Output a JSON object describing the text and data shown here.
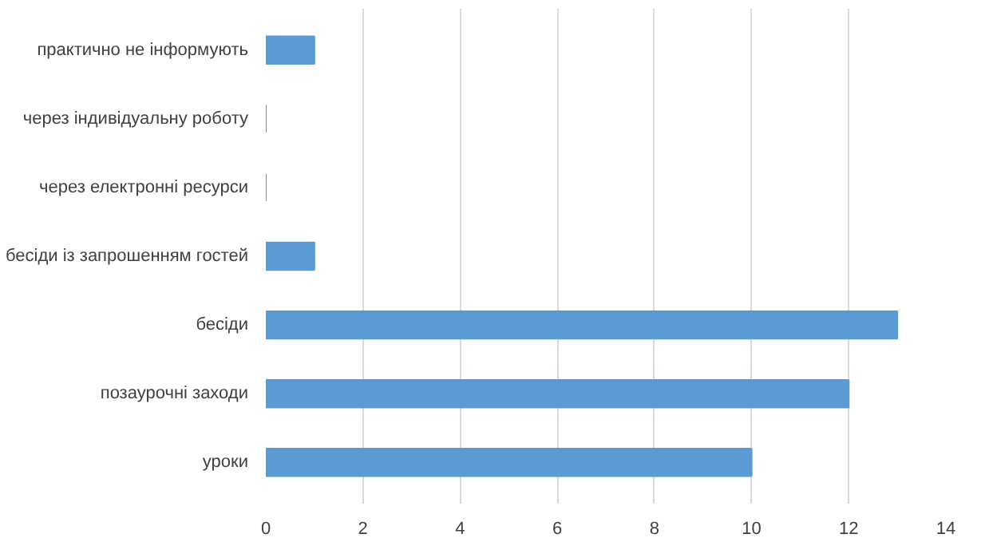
{
  "chart_data": {
    "type": "bar",
    "orientation": "horizontal",
    "categories": [
      "практично не інформують",
      "через індивідуальну роботу",
      "через електронні ресурси",
      "бесіди із запрошенням гостей",
      "бесіди",
      "позаурочні заходи",
      "уроки"
    ],
    "values": [
      1,
      0,
      0,
      1,
      13,
      12,
      10
    ],
    "color": "#5b9bd5",
    "xlim": [
      0,
      14
    ],
    "xticks": [
      0,
      2,
      4,
      6,
      8,
      10,
      12,
      14
    ],
    "grid": "x"
  }
}
